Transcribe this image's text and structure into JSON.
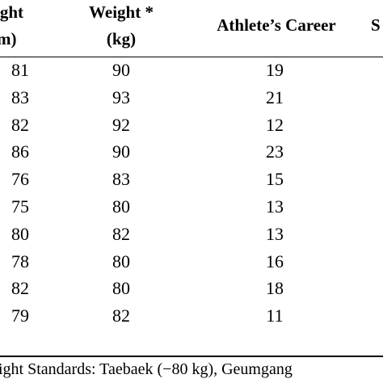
{
  "table": {
    "headers": {
      "height_line1": "ight",
      "height_line2": "m)",
      "weight_line1": "Weight *",
      "weight_line2": "(kg)",
      "career": "Athlete’s Career",
      "cut_off": "S"
    },
    "rows": [
      {
        "height": "81",
        "weight": "90",
        "career": "19"
      },
      {
        "height": "83",
        "weight": "93",
        "career": "21"
      },
      {
        "height": "82",
        "weight": "92",
        "career": "12"
      },
      {
        "height": "86",
        "weight": "90",
        "career": "23"
      },
      {
        "height": "76",
        "weight": "83",
        "career": "15"
      },
      {
        "height": "75",
        "weight": "80",
        "career": "13"
      },
      {
        "height": "80",
        "weight": "82",
        "career": "13"
      },
      {
        "height": "78",
        "weight": "80",
        "career": "16"
      },
      {
        "height": "82",
        "weight": "80",
        "career": "18"
      },
      {
        "height": "79",
        "weight": "82",
        "career": "11"
      }
    ],
    "footnote": "ight Standards: Taebaek (−80 kg), Geumgang"
  }
}
